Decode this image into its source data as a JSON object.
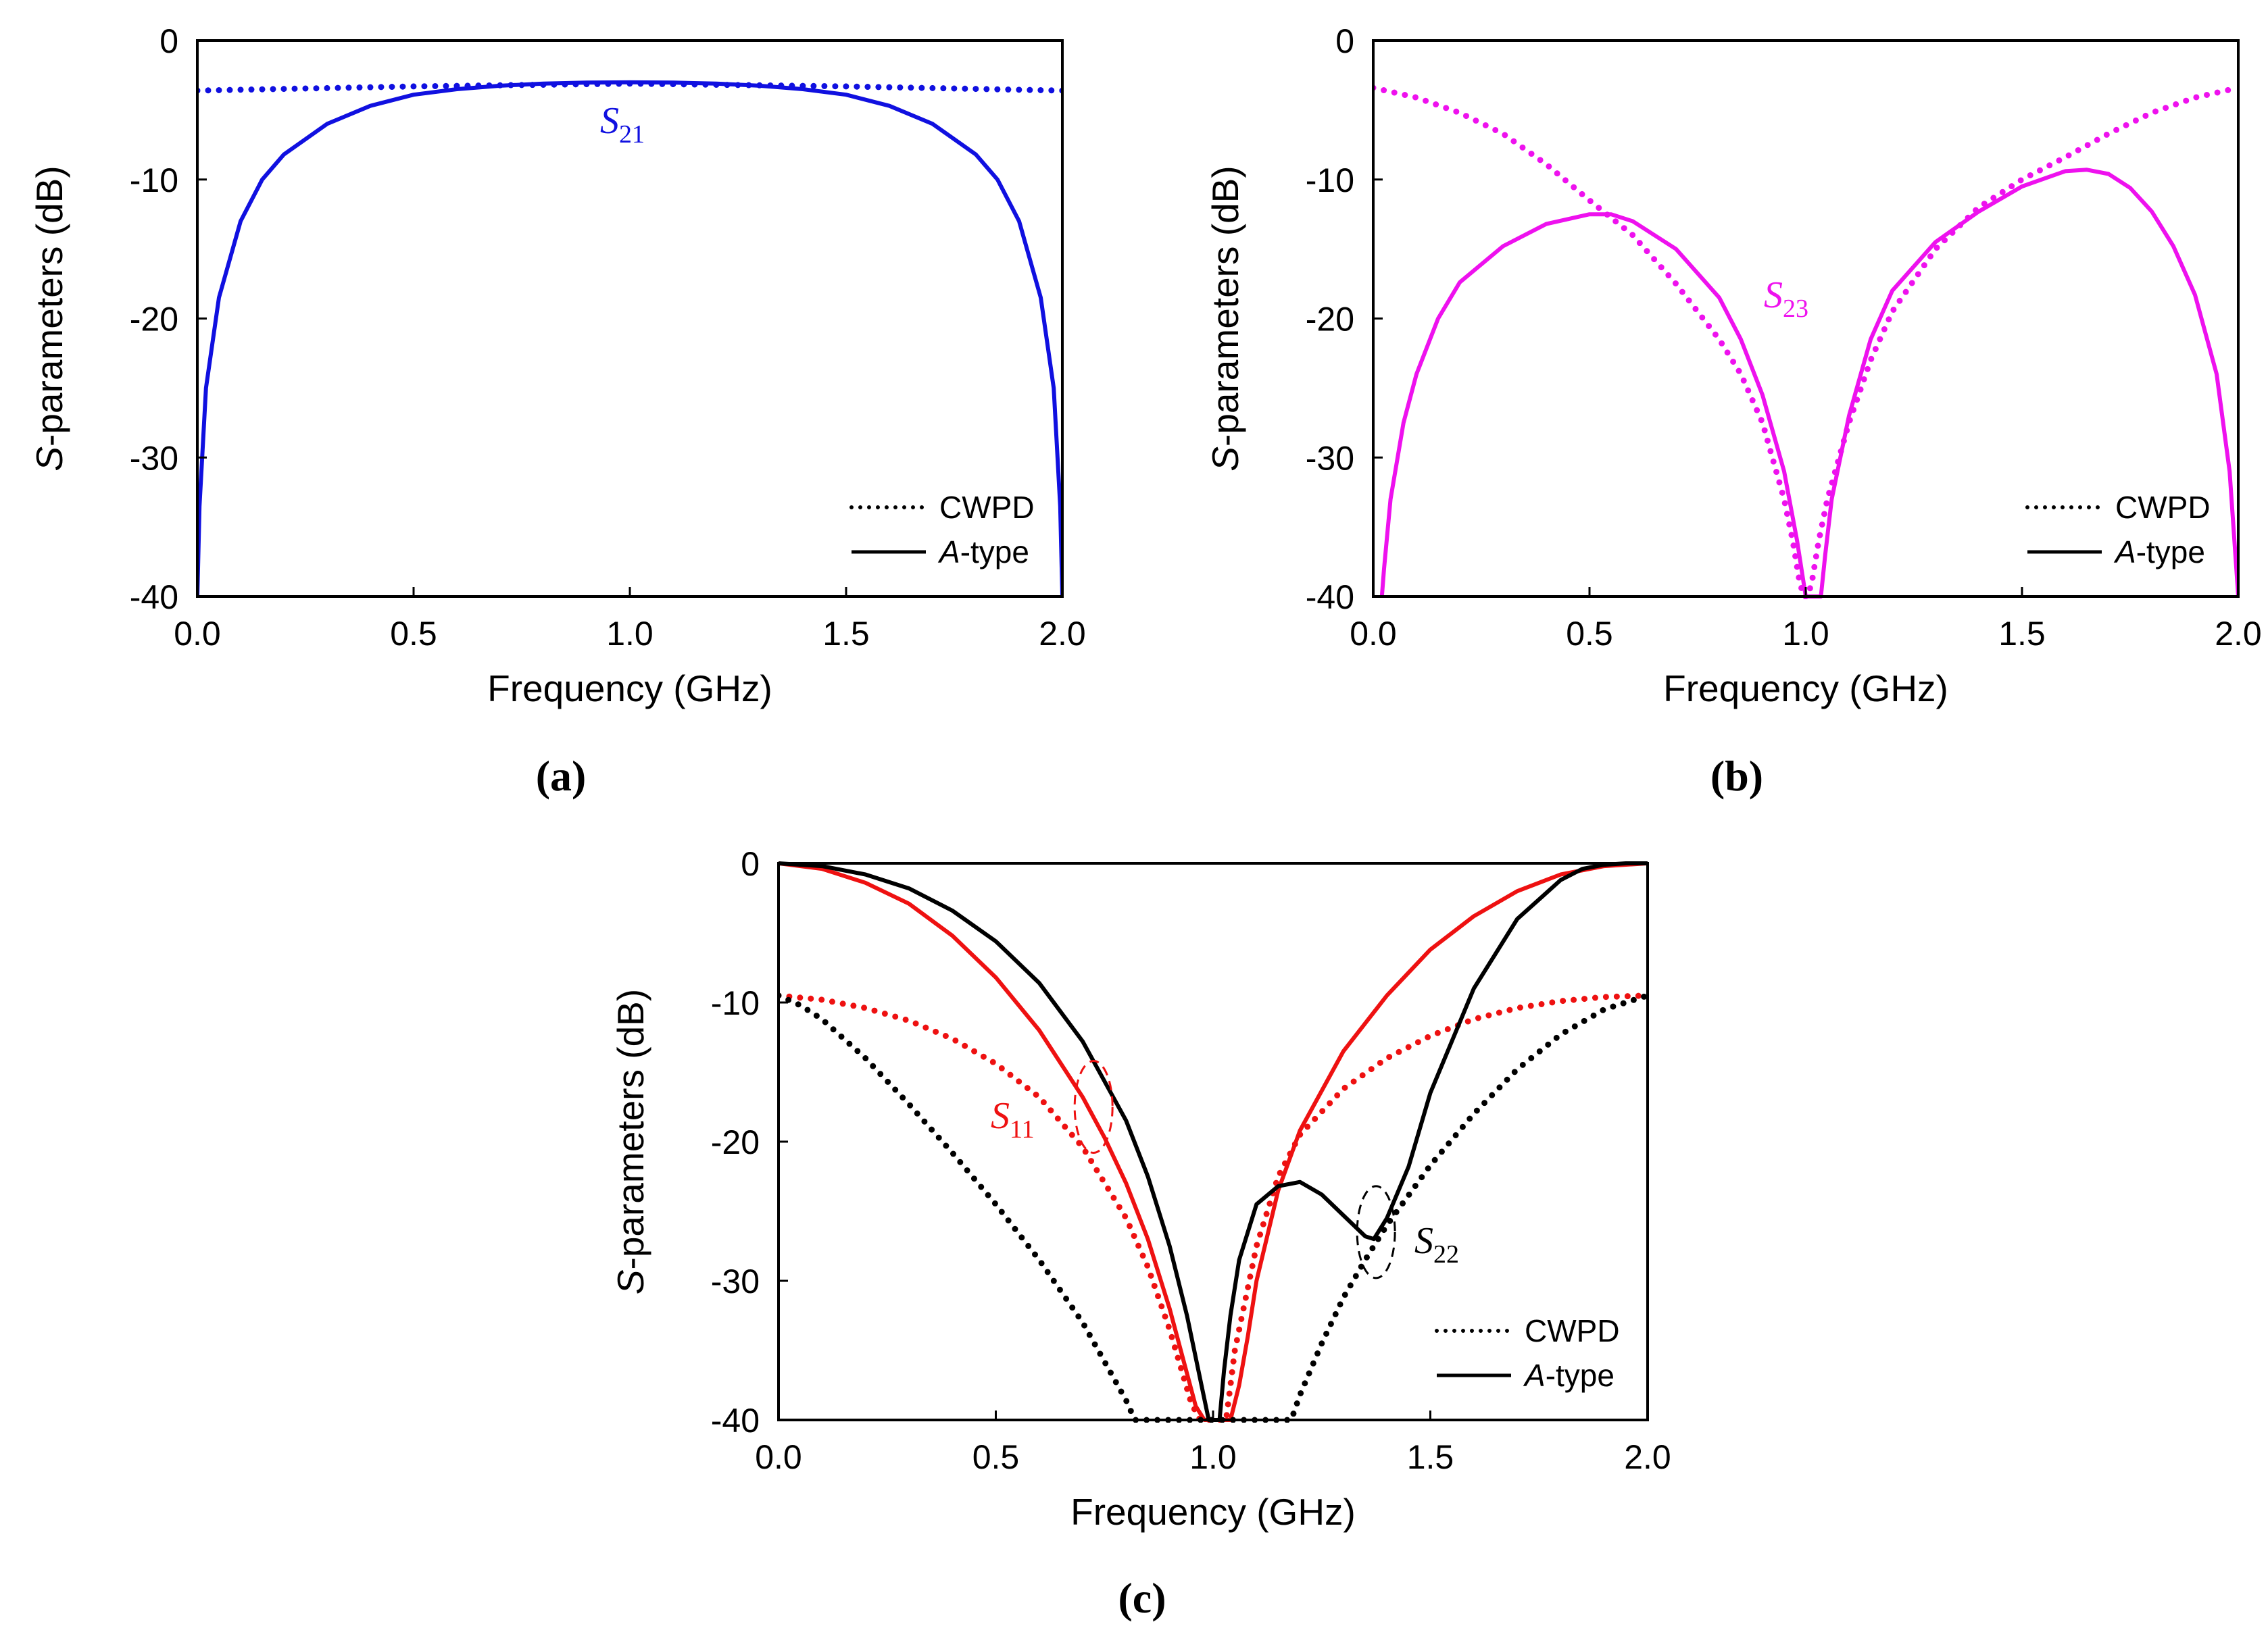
{
  "chart_data": [
    {
      "id": "a",
      "type": "line",
      "panel_label": "(a)",
      "xlabel": "Frequency (GHz)",
      "ylabel_italic": "S",
      "ylabel_rest": "-parameters (dB)",
      "xlim": [
        0,
        2
      ],
      "ylim": [
        -40,
        0
      ],
      "xticks": [
        "0.0",
        "0.5",
        "1.0",
        "1.5",
        "2.0"
      ],
      "yticks": [
        "0",
        "-10",
        "-20",
        "-30",
        "-40"
      ],
      "legend_position": "bottom-right",
      "legend": [
        {
          "label": "CWPD",
          "style": "dotted"
        },
        {
          "label_italic": "A",
          "label_rest": "-type",
          "style": "solid"
        }
      ],
      "annotations": [
        {
          "main": "S",
          "sub": "21",
          "color": "#1010e0"
        }
      ],
      "series": [
        {
          "name": "CWPD S21",
          "style": "dotted",
          "color": "#1010e0",
          "x": [
            0.0,
            0.5,
            1.0,
            1.5,
            2.0
          ],
          "y": [
            -3.6,
            -3.3,
            -3.1,
            -3.3,
            -3.6
          ]
        },
        {
          "name": "A-type S21",
          "style": "solid",
          "color": "#1010e0",
          "x": [
            0.0,
            0.005,
            0.02,
            0.05,
            0.1,
            0.15,
            0.2,
            0.3,
            0.4,
            0.5,
            0.6,
            0.7,
            0.8,
            0.9,
            1.0,
            1.1,
            1.2,
            1.3,
            1.4,
            1.5,
            1.6,
            1.7,
            1.8,
            1.85,
            1.9,
            1.95,
            1.98,
            1.995,
            2.0
          ],
          "y": [
            -40,
            -33.5,
            -25,
            -18.5,
            -13,
            -10,
            -8.2,
            -6,
            -4.7,
            -3.9,
            -3.5,
            -3.25,
            -3.1,
            -3.03,
            -3.01,
            -3.03,
            -3.1,
            -3.25,
            -3.5,
            -3.9,
            -4.7,
            -6,
            -8.2,
            -10,
            -13,
            -18.5,
            -25,
            -33.5,
            -40
          ]
        }
      ]
    },
    {
      "id": "b",
      "type": "line",
      "panel_label": "(b)",
      "xlabel": "Frequency (GHz)",
      "ylabel_italic": "S",
      "ylabel_rest": "-parameters (dB)",
      "xlim": [
        0,
        2
      ],
      "ylim": [
        -40,
        0
      ],
      "xticks": [
        "0.0",
        "0.5",
        "1.0",
        "1.5",
        "2.0"
      ],
      "yticks": [
        "0",
        "-10",
        "-20",
        "-30",
        "-40"
      ],
      "legend_position": "bottom-right",
      "legend": [
        {
          "label": "CWPD",
          "style": "dotted"
        },
        {
          "label_italic": "A",
          "label_rest": "-type",
          "style": "solid"
        }
      ],
      "annotations": [
        {
          "main": "S",
          "sub": "23",
          "color": "#ee11ee"
        }
      ],
      "series": [
        {
          "name": "CWPD S23",
          "style": "dotted",
          "color": "#ee11ee",
          "x": [
            0.0,
            0.1,
            0.2,
            0.3,
            0.4,
            0.5,
            0.6,
            0.7,
            0.8,
            0.85,
            0.9,
            0.95,
            0.97,
            0.985,
            0.995,
            1.0,
            1.005,
            1.015,
            1.03,
            1.05,
            1.1,
            1.15,
            1.2,
            1.3,
            1.4,
            1.5,
            1.6,
            1.7,
            1.8,
            1.9,
            2.0
          ],
          "y": [
            -3.4,
            -4.1,
            -5.2,
            -6.7,
            -8.9,
            -11.5,
            -14,
            -17.5,
            -21.5,
            -24,
            -27.5,
            -33,
            -36,
            -38.8,
            -40,
            -40,
            -40,
            -38.8,
            -36,
            -33,
            -27.5,
            -23,
            -19.5,
            -15,
            -12,
            -10,
            -8.4,
            -6.7,
            -5.2,
            -4.1,
            -3.4
          ]
        },
        {
          "name": "A-type S23",
          "style": "solid",
          "color": "#ee11ee",
          "x": [
            0.02,
            0.025,
            0.04,
            0.07,
            0.1,
            0.15,
            0.2,
            0.3,
            0.4,
            0.5,
            0.55,
            0.6,
            0.7,
            0.8,
            0.85,
            0.9,
            0.95,
            0.98,
            0.995,
            1.0,
            1.035,
            1.045,
            1.06,
            1.1,
            1.15,
            1.2,
            1.3,
            1.4,
            1.5,
            1.6,
            1.65,
            1.7,
            1.75,
            1.8,
            1.85,
            1.9,
            1.95,
            1.98,
            2.0
          ],
          "y": [
            -40,
            -38,
            -33,
            -27.5,
            -24,
            -20,
            -17.4,
            -14.8,
            -13.2,
            -12.5,
            -12.5,
            -13,
            -15,
            -18.5,
            -21.5,
            -25.5,
            -31,
            -36,
            -39,
            -40,
            -40,
            -37,
            -33,
            -27,
            -21.5,
            -18,
            -14.5,
            -12.3,
            -10.5,
            -9.4,
            -9.3,
            -9.6,
            -10.6,
            -12.3,
            -14.8,
            -18.3,
            -24,
            -31,
            -40
          ]
        }
      ]
    },
    {
      "id": "c",
      "type": "line",
      "panel_label": "(c)",
      "xlabel": "Frequency (GHz)",
      "ylabel_italic": "S",
      "ylabel_rest": "-parameters (dB)",
      "xlim": [
        0,
        2
      ],
      "ylim": [
        -40,
        0
      ],
      "xticks": [
        "0.0",
        "0.5",
        "1.0",
        "1.5",
        "2.0"
      ],
      "yticks": [
        "0",
        "-10",
        "-20",
        "-30",
        "-40"
      ],
      "legend_position": "bottom-right",
      "legend": [
        {
          "label": "CWPD",
          "style": "dotted"
        },
        {
          "label_italic": "A",
          "label_rest": "-type",
          "style": "solid"
        }
      ],
      "annotations": [
        {
          "main": "S",
          "sub": "11",
          "color": "#ee1111"
        },
        {
          "main": "S",
          "sub": "22",
          "color": "#000000"
        }
      ],
      "series": [
        {
          "name": "CWPD S11",
          "style": "dotted",
          "color": "#ee1111",
          "x": [
            0.0,
            0.1,
            0.2,
            0.3,
            0.4,
            0.5,
            0.6,
            0.7,
            0.8,
            0.85,
            0.9,
            0.95,
            0.97,
            0.985,
            1.0,
            1.015,
            1.03,
            1.05,
            1.1,
            1.15,
            1.2,
            1.3,
            1.4,
            1.5,
            1.6,
            1.7,
            1.8,
            1.9,
            2.0
          ],
          "y": [
            -9.5,
            -9.8,
            -10.4,
            -11.3,
            -12.6,
            -14.4,
            -16.8,
            -20.4,
            -25.5,
            -29,
            -33.5,
            -38.8,
            -40,
            -40,
            -40,
            -40,
            -40,
            -35,
            -27.5,
            -22.5,
            -19.5,
            -16.2,
            -14,
            -12.4,
            -11.2,
            -10.4,
            -9.9,
            -9.6,
            -9.5
          ]
        },
        {
          "name": "A-type S11",
          "style": "solid",
          "color": "#ee1111",
          "x": [
            0.0,
            0.1,
            0.2,
            0.3,
            0.4,
            0.5,
            0.6,
            0.7,
            0.75,
            0.8,
            0.85,
            0.9,
            0.93,
            0.96,
            0.98,
            1.04,
            1.06,
            1.08,
            1.1,
            1.15,
            1.2,
            1.3,
            1.4,
            1.5,
            1.6,
            1.7,
            1.8,
            1.9,
            2.0
          ],
          "y": [
            0,
            -0.4,
            -1.4,
            -2.9,
            -5.2,
            -8.2,
            -12,
            -16.8,
            -19.7,
            -23,
            -27,
            -32,
            -35.5,
            -39,
            -40,
            -40,
            -37.5,
            -34,
            -30,
            -23.5,
            -19.2,
            -13.5,
            -9.5,
            -6.2,
            -3.8,
            -2,
            -0.8,
            -0.2,
            0
          ]
        },
        {
          "name": "CWPD S22",
          "style": "dotted",
          "color": "#000000",
          "x": [
            0.0,
            0.05,
            0.1,
            0.2,
            0.3,
            0.4,
            0.5,
            0.6,
            0.7,
            0.75,
            0.8,
            0.82,
            0.83,
            1.17,
            1.18,
            1.2,
            1.25,
            1.3,
            1.35,
            1.4,
            1.5,
            1.6,
            1.7,
            1.8,
            1.9,
            2.0
          ],
          "y": [
            -9.5,
            -10.2,
            -11.2,
            -14,
            -17.3,
            -20.8,
            -24.5,
            -28.5,
            -33,
            -35.8,
            -38.6,
            -40,
            -40,
            -40,
            -40,
            -38.2,
            -34.5,
            -31.2,
            -28.5,
            -26,
            -21.7,
            -18,
            -14.8,
            -12.3,
            -10.5,
            -9.5
          ]
        },
        {
          "name": "A-type S22",
          "style": "solid",
          "color": "#000000",
          "x": [
            0.0,
            0.1,
            0.2,
            0.3,
            0.4,
            0.5,
            0.6,
            0.7,
            0.8,
            0.85,
            0.9,
            0.94,
            0.97,
            0.99,
            1.0,
            1.005,
            1.015,
            1.025,
            1.04,
            1.06,
            1.1,
            1.15,
            1.2,
            1.25,
            1.3,
            1.35,
            1.37,
            1.4,
            1.45,
            1.5,
            1.6,
            1.7,
            1.8,
            1.85,
            1.9,
            1.95,
            2.0
          ],
          "y": [
            0,
            -0.2,
            -0.8,
            -1.8,
            -3.4,
            -5.6,
            -8.6,
            -12.8,
            -18.5,
            -22.5,
            -27.5,
            -32.5,
            -37,
            -40,
            -40,
            -40,
            -40,
            -36.5,
            -32.5,
            -28.5,
            -24.5,
            -23.2,
            -22.9,
            -23.8,
            -25.3,
            -26.8,
            -27,
            -25.5,
            -21.8,
            -16.5,
            -9,
            -4,
            -1.2,
            -0.4,
            -0.1,
            0,
            0
          ]
        }
      ]
    }
  ]
}
